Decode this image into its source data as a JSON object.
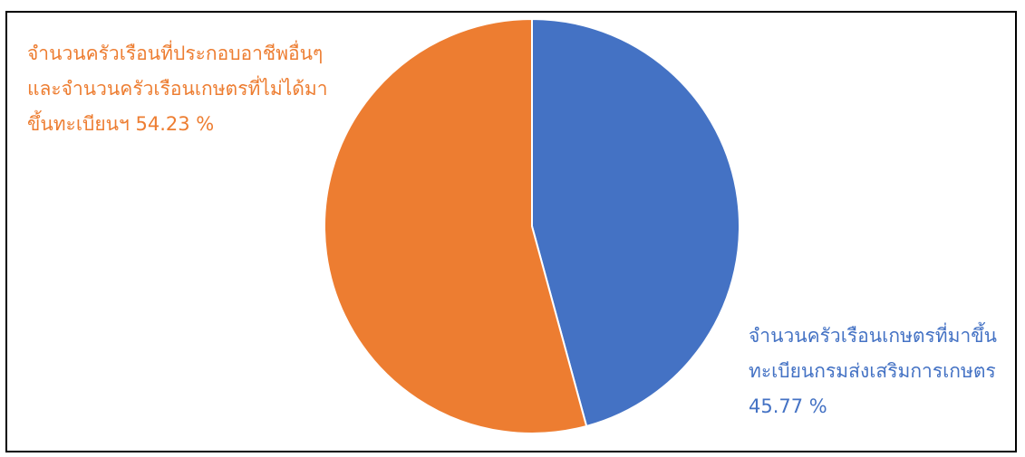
{
  "chart_data": {
    "type": "pie",
    "slices": [
      {
        "value": 45.77,
        "color": "#4472C4",
        "label_lines": [
          "จำนวนครัวเรือนเกษตรที่มาขึ้น",
          "ทะเบียนกรมส่งเสริมการเกษตร",
          "45.77 %"
        ]
      },
      {
        "value": 54.23,
        "color": "#ED7D31",
        "label_lines": [
          "จำนวนครัวเรือนที่ประกอบอาชีพอื่นๆ",
          "และจำนวนครัวเรือนเกษตรที่ไม่ได้มา",
          "ขึ้นทะเบียนฯ 54.23 %"
        ]
      }
    ],
    "start": "top",
    "direction": "clockwise",
    "legend": "none"
  }
}
